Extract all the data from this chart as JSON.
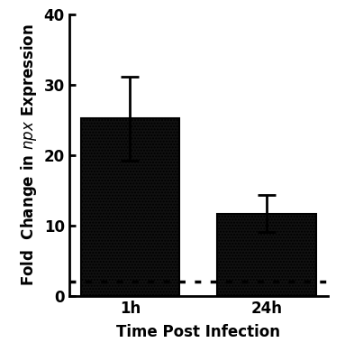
{
  "categories": [
    "1h",
    "24h"
  ],
  "values": [
    25.2,
    11.7
  ],
  "errors_upper": [
    6.0,
    2.6
  ],
  "errors_lower": [
    6.0,
    2.6
  ],
  "bar_color": "#111111",
  "bar_edgecolor": "#000000",
  "hatch": ".....",
  "dotted_line_y": 2.0,
  "dotted_line_color": "#000000",
  "ylabel_prefix": "Fold  Change in ",
  "ylabel_italic": "npx",
  "ylabel_suffix": " Expression",
  "xlabel": "Time Post Infection",
  "ylim": [
    0,
    40
  ],
  "yticks": [
    0,
    10,
    20,
    30,
    40
  ],
  "bar_width": 0.72,
  "capsize": 7,
  "error_linewidth": 2.0,
  "error_capthick": 2.0,
  "background_color": "#ffffff",
  "label_fontsize": 12,
  "tick_fontsize": 12
}
